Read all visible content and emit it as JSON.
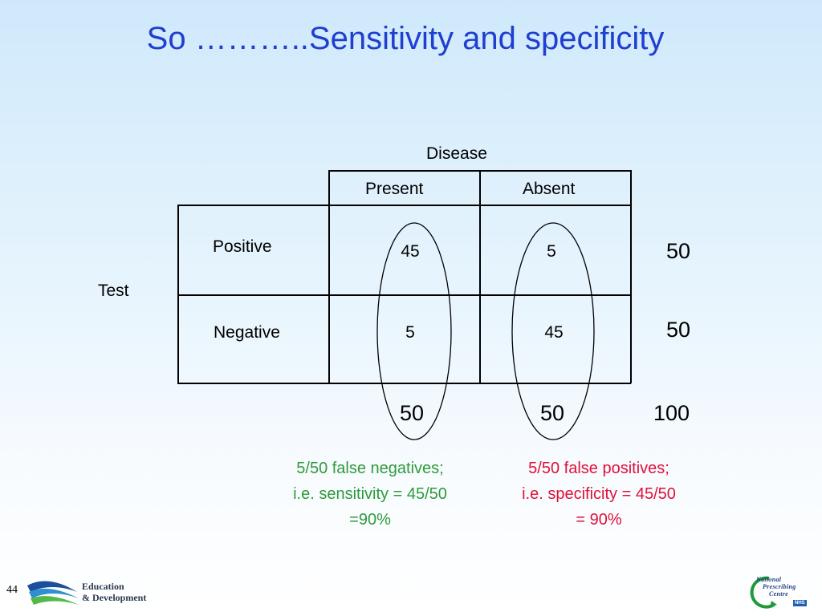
{
  "slide": {
    "title": "So ………..Sensitivity and specificity",
    "page_number": "44"
  },
  "table": {
    "column_group_label": "Disease",
    "row_group_label": "Test",
    "columns": [
      "Present",
      "Absent"
    ],
    "rows": [
      {
        "label": "Positive",
        "values": [
          "45",
          "5"
        ],
        "row_total": "50"
      },
      {
        "label": "Negative",
        "values": [
          "5",
          "45"
        ],
        "row_total": "50"
      }
    ],
    "column_totals": [
      "50",
      "50"
    ],
    "grand_total": "100"
  },
  "notes": {
    "sensitivity": {
      "lines": [
        "5/50 false negatives;",
        "i.e. sensitivity = 45/50",
        "=90%"
      ],
      "color": "#2e9a3c"
    },
    "specificity": {
      "lines": [
        "5/50 false positives;",
        "i.e. specificity = 45/50",
        "= 90%"
      ],
      "color": "#e0103a"
    }
  },
  "logos": {
    "education": {
      "lines": [
        "Education",
        "& Development"
      ],
      "icon": "wave-swoosh-icon"
    },
    "npc": {
      "lines": [
        "National",
        "Prescribing",
        "Centre"
      ],
      "badge": "NHS",
      "icon": "npc-arc-logo-icon"
    }
  },
  "colors": {
    "title": "#1f3fd0",
    "background_top": "#cfe9fb",
    "background_bottom": "#ffffff"
  }
}
